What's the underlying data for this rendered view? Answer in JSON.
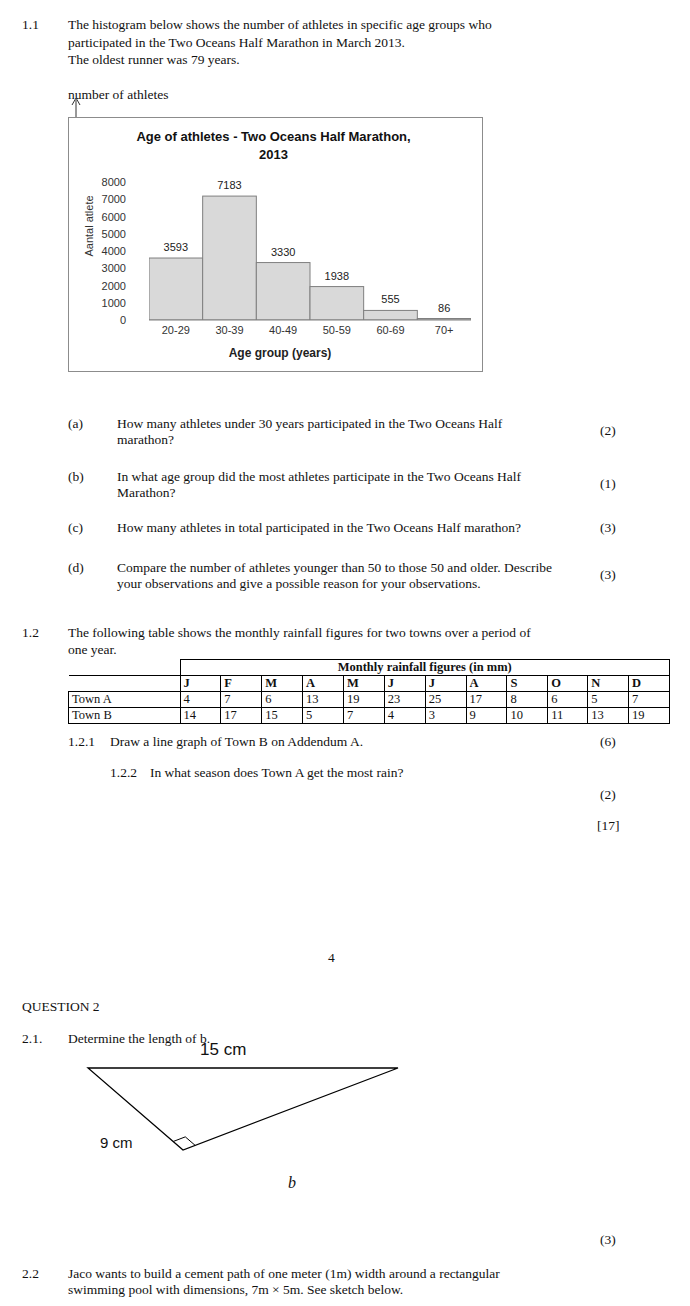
{
  "section_1_1": {
    "number": "1.1",
    "intro": [
      "The histogram below shows the number of athletes in specific age groups who",
      "participated in the Two Oceans Half Marathon in March 2013.",
      "The oldest runner was 79 years."
    ],
    "axis_caption": "number of athletes"
  },
  "chart_data": {
    "type": "bar",
    "title": "Age of athletes - Two Oceans Half Marathon, 2013",
    "x_label": "Age group (years)",
    "y_label": "Aantal atlete",
    "categories": [
      "20-29",
      "30-39",
      "40-49",
      "50-59",
      "60-69",
      "70+"
    ],
    "values": [
      3593,
      7183,
      3330,
      1938,
      555,
      86
    ],
    "color": "#d9d9d9",
    "ylim": [
      0,
      8000
    ],
    "yticks": [
      0,
      1000,
      2000,
      3000,
      4000,
      5000,
      6000,
      7000,
      8000
    ],
    "grid": false,
    "data_labels": true
  },
  "questions_1_1": [
    {
      "label": "(a)",
      "lines": [
        "How many athletes under 30 years participated in the Two Oceans Half",
        "marathon?"
      ],
      "marks": "(2)"
    },
    {
      "label": "(b)",
      "lines": [
        "In what age group did the most athletes participate in the Two Oceans Half",
        "Marathon?"
      ],
      "marks": "(1)"
    },
    {
      "label": "(c)",
      "lines": [
        "How many athletes in total participated in the Two Oceans Half marathon?"
      ],
      "marks": "(3)"
    },
    {
      "label": "(d)",
      "lines": [
        "Compare the number of athletes younger than 50 to those 50 and older. Describe",
        "your observations and give a possible reason for your observations."
      ],
      "marks": "(3)"
    }
  ],
  "section_1_2": {
    "number": "1.2",
    "intro": [
      "The following table shows the monthly rainfall figures for two towns over a period of",
      "one year."
    ],
    "table": {
      "title": "Monthly rainfall figures (in mm)",
      "months": [
        "J",
        "F",
        "M",
        "A",
        "M",
        "J",
        "J",
        "A",
        "S",
        "O",
        "N",
        "D"
      ],
      "rows": [
        {
          "name": "Town A",
          "values": [
            4,
            7,
            6,
            13,
            19,
            23,
            25,
            17,
            8,
            6,
            5,
            7
          ]
        },
        {
          "name": "Town B",
          "values": [
            14,
            17,
            15,
            5,
            7,
            4,
            3,
            9,
            10,
            11,
            13,
            19
          ]
        }
      ]
    },
    "sub": [
      {
        "number": "1.2.1",
        "text": "Draw a line graph of Town B on Addendum A.",
        "marks": "(6)"
      },
      {
        "number": "1.2.2",
        "text": "In what season does Town A get the most rain?",
        "marks": "(2)"
      }
    ],
    "total": "[17]"
  },
  "page_number": "4",
  "question_2": {
    "heading": "QUESTION 2",
    "q2_1": {
      "number": "2.1.",
      "text": "Determine the length of b.",
      "marks": "(3)",
      "triangle": {
        "hypotenuse": "15 cm",
        "leg": "9 cm",
        "unknown": "b"
      }
    },
    "q2_2": {
      "number": "2.2",
      "lines": [
        "Jaco wants to build a cement path of one meter (1m) width around a rectangular",
        "swimming pool with dimensions, 7m × 5m. See sketch below."
      ]
    }
  }
}
